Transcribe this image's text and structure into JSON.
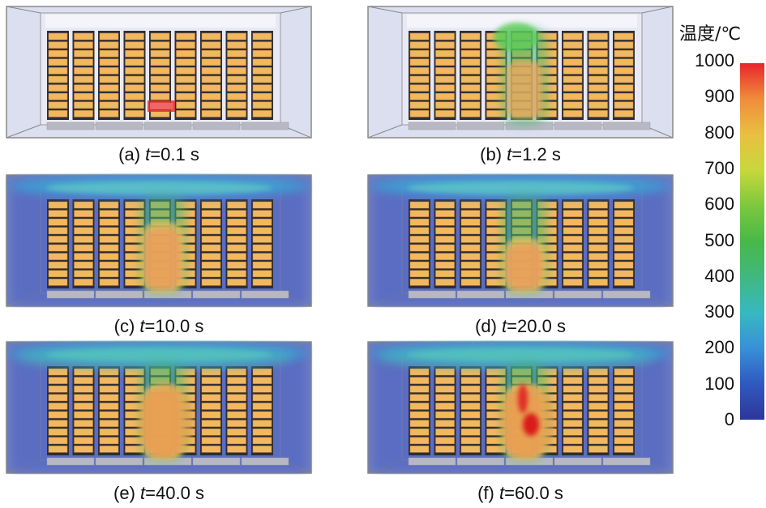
{
  "panels": [
    {
      "caption_prefix": "(a) ",
      "caption_var": "t",
      "caption_value": "=0.1 s",
      "stage": 0
    },
    {
      "caption_prefix": "(b) ",
      "caption_var": "t",
      "caption_value": "=1.2 s",
      "stage": 1
    },
    {
      "caption_prefix": "(c) ",
      "caption_var": "t",
      "caption_value": "=10.0 s",
      "stage": 2
    },
    {
      "caption_prefix": "(d) ",
      "caption_var": "t",
      "caption_value": "=20.0 s",
      "stage": 3
    },
    {
      "caption_prefix": "(e) ",
      "caption_var": "t",
      "caption_value": "=40.0 s",
      "stage": 4
    },
    {
      "caption_prefix": "(f) ",
      "caption_var": "t",
      "caption_value": "=60.0 s",
      "stage": 5
    }
  ],
  "legend": {
    "title": "温度/℃",
    "ticks": [
      "1000",
      "900",
      "800",
      "700",
      "600",
      "500",
      "400",
      "300",
      "200",
      "100",
      "0"
    ],
    "colors": [
      "#e8262a",
      "#f08c3c",
      "#e8c040",
      "#c8d83c",
      "#7cc83c",
      "#48b848",
      "#40b880",
      "#38b8c0",
      "#3890d8",
      "#3058c0",
      "#2c3898"
    ]
  }
}
